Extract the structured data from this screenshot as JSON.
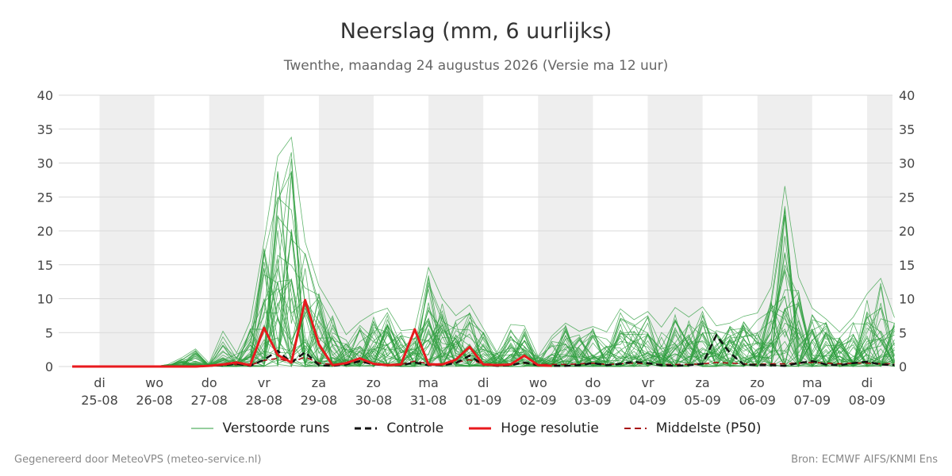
{
  "header": {
    "title": "Neerslag (mm, 6 uurlijks)",
    "subtitle": "Twenthe, maandag 24 augustus 2026 (Versie ma 12 uur)"
  },
  "footer": {
    "left": "Gegenereerd door MeteoVPS (meteo-service.nl)",
    "right": "Bron: ECMWF AIFS/KNMI Ens"
  },
  "legend": [
    {
      "key": "members",
      "label": "Verstoorde runs",
      "color": "#2e9e3e",
      "style": "thin"
    },
    {
      "key": "control",
      "label": "Controle",
      "color": "#111111",
      "style": "dashed"
    },
    {
      "key": "hires",
      "label": "Hoge resolutie",
      "color": "#e8191d",
      "style": "solid"
    },
    {
      "key": "p50",
      "label": "Middelste (P50)",
      "color": "#a80f12",
      "style": "dashed"
    }
  ],
  "chart_data": {
    "type": "line",
    "ylim": [
      0,
      40
    ],
    "yticks": [
      0,
      5,
      10,
      15,
      20,
      25,
      30,
      35,
      40
    ],
    "grid": true,
    "legend_position": "bottom",
    "x_start": "2026-08-24 12:00",
    "x_step_hours": 6,
    "day_ticks": [
      {
        "day": "di",
        "date": "25-08"
      },
      {
        "day": "wo",
        "date": "26-08"
      },
      {
        "day": "do",
        "date": "27-08"
      },
      {
        "day": "vr",
        "date": "28-08"
      },
      {
        "day": "za",
        "date": "29-08"
      },
      {
        "day": "zo",
        "date": "30-08"
      },
      {
        "day": "ma",
        "date": "31-08"
      },
      {
        "day": "di",
        "date": "01-09"
      },
      {
        "day": "wo",
        "date": "02-09"
      },
      {
        "day": "do",
        "date": "03-09"
      },
      {
        "day": "vr",
        "date": "04-09"
      },
      {
        "day": "za",
        "date": "05-09"
      },
      {
        "day": "zo",
        "date": "06-09"
      },
      {
        "day": "ma",
        "date": "07-09"
      },
      {
        "day": "di",
        "date": "08-09"
      }
    ],
    "series": [
      {
        "name": "Hoge resolutie",
        "color": "#e8191d",
        "values": [
          0,
          0,
          0,
          0,
          0,
          0,
          0,
          0,
          0,
          0,
          0.1,
          0.3,
          0.6,
          0.2,
          5.7,
          1.7,
          0.6,
          9.8,
          3.3,
          0.2,
          0.5,
          1.2,
          0.4,
          0.2,
          0.3,
          5.5,
          0.3,
          0.3,
          1.0,
          2.9,
          0.3,
          0.2,
          0.3,
          1.6,
          0.2,
          0.1
        ]
      },
      {
        "name": "Controle",
        "color": "#111111",
        "values": [
          0,
          0,
          0,
          0,
          0,
          0,
          0,
          0,
          0,
          0,
          0.1,
          0.2,
          0.4,
          0.1,
          1.0,
          2.3,
          0.6,
          2.1,
          0.2,
          0.1,
          0.3,
          0.8,
          0.3,
          0.2,
          0.2,
          0.6,
          0.2,
          0.2,
          0.5,
          1.6,
          0.3,
          0.1,
          0.2,
          0.6,
          0.2,
          0.1,
          0.1,
          0.2,
          0.5,
          0.2,
          0.4,
          0.7,
          0.5,
          0.2,
          0.1,
          0.2,
          0.4,
          4.6,
          2.0,
          0.3,
          0.2,
          0.2,
          0.1,
          0.5,
          0.8,
          0.3,
          0.2,
          0.5,
          0.7,
          0.3,
          0.2
        ]
      },
      {
        "name": "Middelste (P50)",
        "color": "#a80f12",
        "values": [
          0,
          0,
          0,
          0,
          0,
          0,
          0,
          0,
          0,
          0,
          0.1,
          0.2,
          0.3,
          0.2,
          0.9,
          1.2,
          0.6,
          1.4,
          0.5,
          0.3,
          0.4,
          0.7,
          0.4,
          0.3,
          0.3,
          0.8,
          0.4,
          0.4,
          0.6,
          1.0,
          0.4,
          0.3,
          0.3,
          0.5,
          0.3,
          0.3,
          0.3,
          0.4,
          0.5,
          0.3,
          0.4,
          0.5,
          0.4,
          0.3,
          0.3,
          0.3,
          0.4,
          0.6,
          0.5,
          0.4,
          0.3,
          0.4,
          0.4,
          0.5,
          0.6,
          0.5,
          0.4,
          0.5,
          0.5,
          0.4,
          0.4
        ]
      },
      {
        "name": "Verstoorde runs",
        "color": "#2e9e3e",
        "envelope_max": [
          0,
          0,
          0,
          0,
          0,
          0,
          0,
          0.3,
          1.3,
          2.6,
          0.5,
          5.2,
          2.0,
          6.7,
          18.4,
          31.0,
          33.8,
          18.4,
          11.9,
          8.5,
          4.7,
          6.6,
          7.9,
          8.6,
          5.3,
          5.5,
          14.6,
          10.0,
          7.5,
          9.1,
          5.6,
          2.1,
          6.2,
          6.0,
          1.5,
          4.5,
          6.4,
          5.2,
          5.9,
          5.1,
          8.5,
          6.9,
          8.1,
          5.8,
          8.7,
          7.3,
          8.8,
          6.0,
          6.4,
          7.4,
          7.9,
          11.7,
          26.6,
          13.2,
          8.6,
          7.0,
          5.1,
          7.3,
          10.7,
          13.0,
          7.2
        ]
      }
    ]
  }
}
